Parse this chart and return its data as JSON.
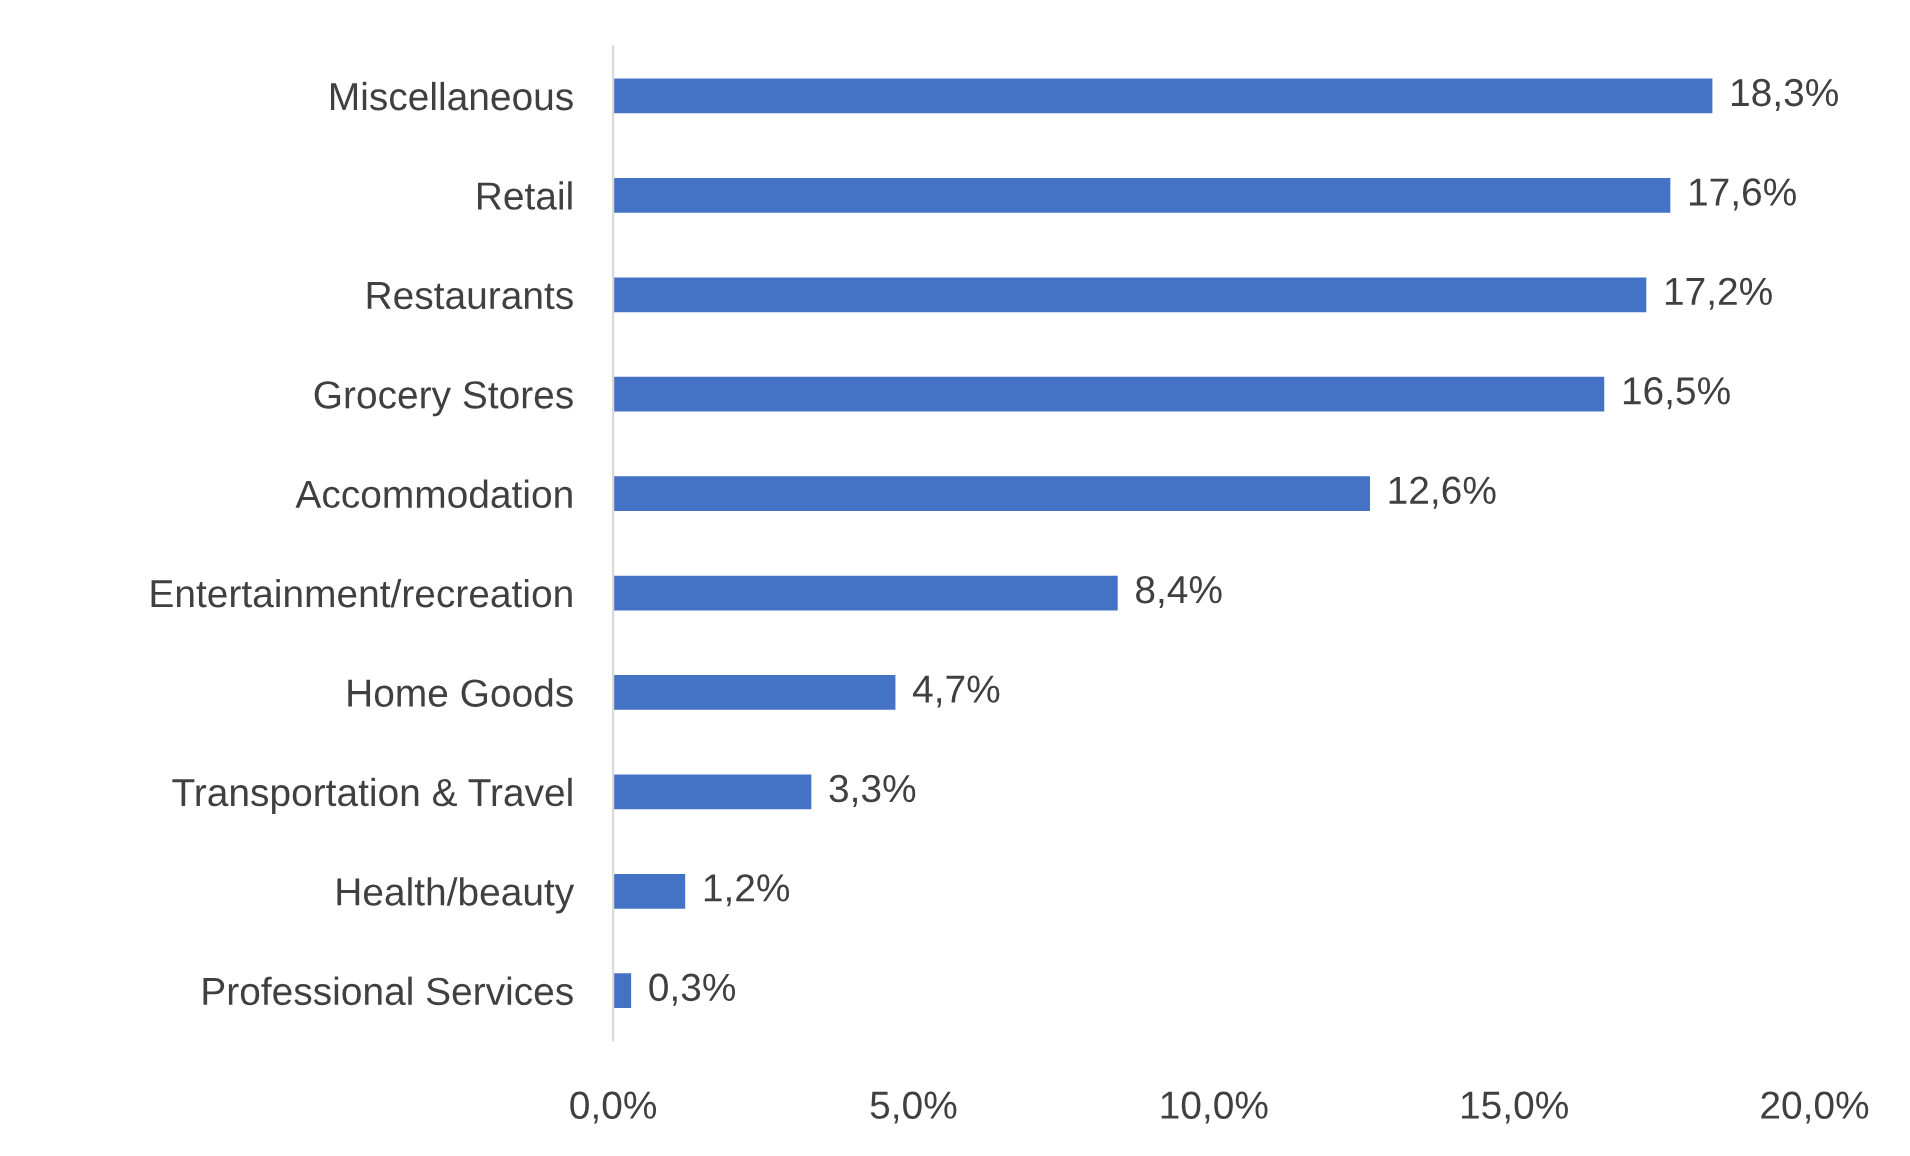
{
  "chart_data": {
    "type": "bar",
    "orientation": "horizontal",
    "categories": [
      "Miscellaneous",
      "Retail",
      "Restaurants",
      "Grocery Stores",
      "Accommodation",
      "Entertainment/recreation",
      "Home Goods",
      "Transportation & Travel",
      "Health/beauty",
      "Professional Services"
    ],
    "values": [
      18.3,
      17.6,
      17.2,
      16.5,
      12.6,
      8.4,
      4.7,
      3.3,
      1.2,
      0.3
    ],
    "value_labels": [
      "18,3%",
      "17,6%",
      "17,2%",
      "16,5%",
      "12,6%",
      "8,4%",
      "4,7%",
      "3,3%",
      "1,2%",
      "0,3%"
    ],
    "color": "#4472c4",
    "xlim": [
      0,
      20
    ],
    "xticks": [
      {
        "value": 0,
        "label": "0,0%"
      },
      {
        "value": 5,
        "label": "5,0%"
      },
      {
        "value": 10,
        "label": "10,0%"
      },
      {
        "value": 15,
        "label": "15,0%"
      },
      {
        "value": 20,
        "label": "20,0%"
      }
    ],
    "grid": false,
    "legend": false
  }
}
